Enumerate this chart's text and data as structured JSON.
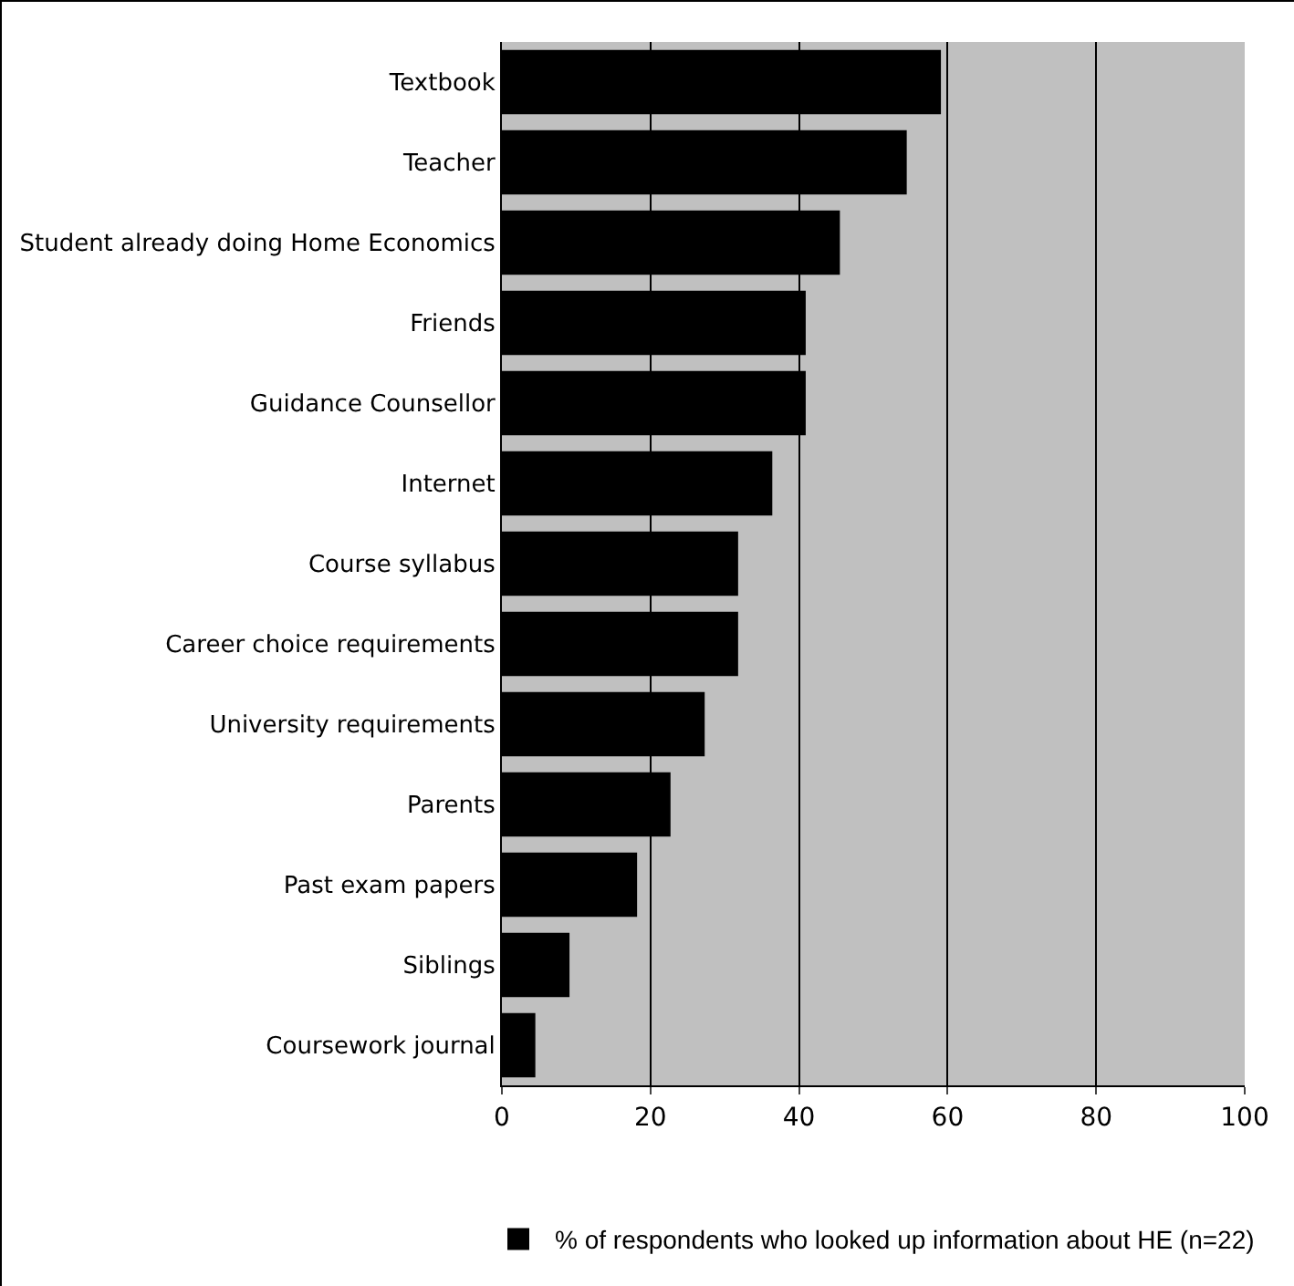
{
  "chart_data": {
    "type": "bar",
    "orientation": "horizontal",
    "categories": [
      "Textbook",
      "Teacher",
      "Student already doing Home Economics",
      "Friends",
      "Guidance Counsellor",
      "Internet",
      "Course syllabus",
      "Career choice requirements",
      "University requirements",
      "Parents",
      "Past exam papers",
      "Siblings",
      "Coursework journal"
    ],
    "series": [
      {
        "name": "% of respondents who looked up information about HE (n=22)",
        "color": "#000000",
        "values": [
          59.1,
          54.5,
          45.5,
          40.9,
          40.9,
          36.4,
          31.8,
          31.8,
          27.3,
          22.7,
          18.2,
          9.1,
          4.5
        ]
      }
    ],
    "xlim": [
      0,
      100
    ],
    "xticks": [
      0,
      20,
      40,
      60,
      80,
      100
    ],
    "grid": "x",
    "legend": "bottom"
  }
}
